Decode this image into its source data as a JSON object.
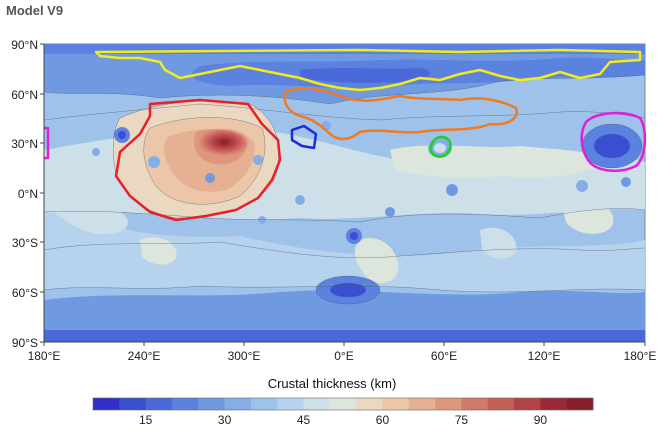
{
  "title": "Model V9",
  "map": {
    "type": "contour-map",
    "projection": "equirectangular",
    "y_ticks": [
      "90°N",
      "60°N",
      "30°N",
      "0°N",
      "30°S",
      "60°S",
      "90°S"
    ],
    "x_ticks": [
      "180°E",
      "240°E",
      "300°E",
      "0°E",
      "60°E",
      "120°E",
      "180°E"
    ]
  },
  "colorbar": {
    "label": "Crustal thickness (km)",
    "tick_labels": [
      "15",
      "30",
      "45",
      "60",
      "75",
      "90"
    ],
    "tick_values": [
      15,
      30,
      45,
      60,
      75,
      90
    ],
    "range": [
      5,
      100
    ],
    "colors": [
      "#3030c8",
      "#3a4ed0",
      "#4a68d8",
      "#5a82de",
      "#6f9ae2",
      "#86aee6",
      "#9ec2ea",
      "#b6d2ec",
      "#cde0ea",
      "#dde6dc",
      "#ead8c0",
      "#ecc6a8",
      "#e6b092",
      "#de967c",
      "#d07a68",
      "#c25e56",
      "#b04248",
      "#9a2a38",
      "#88202c"
    ]
  },
  "regions": [
    {
      "name": "red-region",
      "color": "#e8202a"
    },
    {
      "name": "yellow-region",
      "color": "#f2ec1a"
    },
    {
      "name": "orange-region",
      "color": "#f07a20"
    },
    {
      "name": "blue-region",
      "color": "#1a2adc"
    },
    {
      "name": "green-region",
      "color": "#22d022"
    },
    {
      "name": "magenta-region",
      "color": "#e020d8"
    }
  ]
}
